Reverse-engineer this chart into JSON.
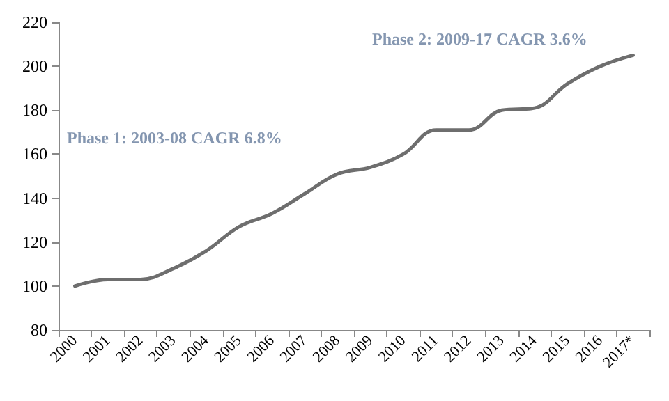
{
  "chart_data": {
    "type": "line",
    "categories": [
      "2000",
      "2001",
      "2002",
      "2003",
      "2004",
      "2005",
      "2006",
      "2007",
      "2008",
      "2009",
      "2010",
      "2011",
      "2012",
      "2013",
      "2014",
      "2015",
      "2016",
      "2017*"
    ],
    "series": [
      {
        "color": "#6e6e6e",
        "values": [
          100,
          103,
          103,
          108,
          116,
          127,
          133,
          142,
          151,
          154,
          160,
          171,
          171,
          180,
          181,
          192,
          200,
          205
        ]
      }
    ],
    "ylim": [
      80,
      220
    ],
    "yticks": [
      80,
      100,
      120,
      140,
      160,
      180,
      200,
      220
    ],
    "grid": false,
    "marker": "none",
    "line_style": "solid",
    "annotations": [
      "Phase 1: 2003-08 CAGR 6.8%",
      "Phase 2: 2009-17 CAGR 3.6%"
    ]
  }
}
